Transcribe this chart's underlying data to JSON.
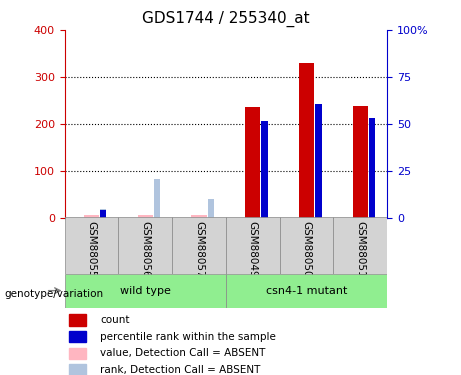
{
  "title": "GDS1744 / 255340_at",
  "samples": [
    "GSM88055",
    "GSM88056",
    "GSM88057",
    "GSM88049",
    "GSM88050",
    "GSM88051"
  ],
  "count_values": [
    5,
    5,
    5,
    235,
    330,
    237
  ],
  "rank_values": [
    15,
    null,
    null,
    205,
    243,
    213
  ],
  "absent_value_values": [
    null,
    20,
    5,
    null,
    null,
    null
  ],
  "absent_rank_values": [
    18,
    82,
    40,
    null,
    null,
    null
  ],
  "absent_flags": [
    true,
    true,
    true,
    false,
    false,
    false
  ],
  "ylim": [
    0,
    400
  ],
  "y2lim": [
    0,
    100
  ],
  "yticks": [
    0,
    100,
    200,
    300,
    400
  ],
  "y2ticks": [
    0,
    25,
    50,
    75,
    100
  ],
  "y2ticklabels": [
    "0",
    "25",
    "50",
    "75",
    "100%"
  ],
  "left_color": "#CC0000",
  "right_color": "#0000CC",
  "bar_color": "#CC0000",
  "rank_color": "#0000CC",
  "absent_val_color": "#FFB6C1",
  "absent_rank_color": "#B0C4DE",
  "group_label": "genotype/variation",
  "wt_label": "wild type",
  "mut_label": "csn4-1 mutant",
  "legend_labels": [
    "count",
    "percentile rank within the sample",
    "value, Detection Call = ABSENT",
    "rank, Detection Call = ABSENT"
  ],
  "legend_colors": [
    "#CC0000",
    "#0000CC",
    "#FFB6C1",
    "#B0C4DE"
  ],
  "grid_lines": [
    100,
    200,
    300
  ]
}
